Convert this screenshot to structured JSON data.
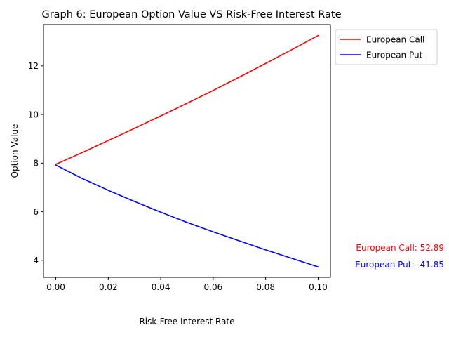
{
  "chart_data": {
    "type": "line",
    "title": "Graph 6: European Option Value VS Risk-Free Interest Rate",
    "xlabel": "Risk-Free Interest Rate",
    "ylabel": "Option Value",
    "xlim": [
      -0.0047,
      0.1047
    ],
    "ylim": [
      3.3,
      13.7
    ],
    "xticks": [
      0.0,
      0.02,
      0.04,
      0.06,
      0.08,
      0.1
    ],
    "xtick_labels": [
      "0.00",
      "0.02",
      "0.04",
      "0.06",
      "0.08",
      "0.10"
    ],
    "yticks": [
      4,
      6,
      8,
      10,
      12
    ],
    "ytick_labels": [
      "4",
      "6",
      "8",
      "10",
      "12"
    ],
    "grid": false,
    "legend_position": "outside-upper-right",
    "x": [
      0.0,
      0.01,
      0.02,
      0.03,
      0.04,
      0.05,
      0.06,
      0.07,
      0.08,
      0.09,
      0.1
    ],
    "series": [
      {
        "name": "European Call",
        "color": "#ff0000",
        "values": [
          7.95,
          8.43,
          8.93,
          9.43,
          9.94,
          10.46,
          10.99,
          11.54,
          12.1,
          12.67,
          13.25
        ]
      },
      {
        "name": "European Put",
        "color": "#0000ff",
        "values": [
          7.92,
          7.37,
          6.88,
          6.42,
          5.98,
          5.56,
          5.17,
          4.8,
          4.43,
          4.08,
          3.73
        ]
      }
    ],
    "annotations": [
      {
        "text": "European Call: 52.89",
        "color": "#ff0000"
      },
      {
        "text": "European Put: -41.85",
        "color": "#0000ff"
      }
    ]
  }
}
